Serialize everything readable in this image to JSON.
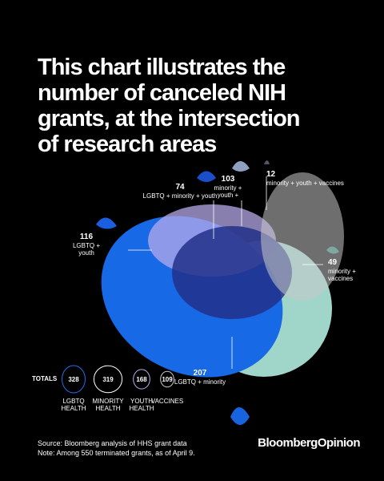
{
  "title": "This chart illustrates the\nnumber of canceled NIH\ngrants, at the intersection\nof research areas",
  "annotations": [
    {
      "value": "74",
      "label": "LGBTQ + minority + youth"
    },
    {
      "value": "103",
      "label": "minority +\nyouth +"
    },
    {
      "value": "12",
      "label": "minority + youth + vaccines"
    },
    {
      "value": "116",
      "label": "LGBTQ +\nyouth"
    },
    {
      "value": "49",
      "label": "minority +\nvaccines"
    },
    {
      "value": "207",
      "label": "LGBTQ + minority"
    }
  ],
  "totals": {
    "label": "TOTALS",
    "items": [
      {
        "value": 328,
        "label": "LGBTQ\nHEALTH"
      },
      {
        "value": 319,
        "label": "MINORITY\nHEALTH"
      },
      {
        "value": 168,
        "label": "YOUTH\nHEALTH"
      },
      {
        "value": 109,
        "label": "VACCINES"
      }
    ]
  },
  "source": "Source: Bloomberg analysis of HHS grant data",
  "note": "Note: Among 550 terminated grants, as of April 9.",
  "brand": "BloombergOpinion"
}
